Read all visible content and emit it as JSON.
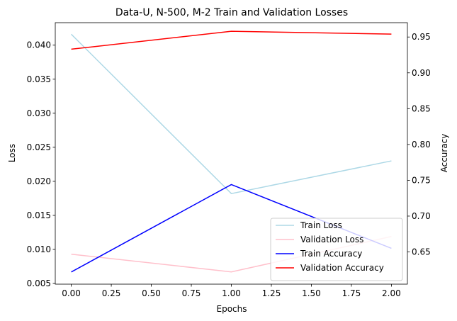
{
  "chart_data": {
    "type": "line",
    "title": "Data-U, N-500, M-2 Train and Validation Losses",
    "xlabel": "Epochs",
    "ylabel": "Loss",
    "y2label": "Accuracy",
    "x": [
      0,
      1,
      2
    ],
    "xlim": [
      -0.1,
      2.1
    ],
    "ylim": [
      0.0049,
      0.0433
    ],
    "y2lim": [
      0.605,
      0.97
    ],
    "xticks": [
      "0.00",
      "0.25",
      "0.50",
      "0.75",
      "1.00",
      "1.25",
      "1.50",
      "1.75",
      "2.00"
    ],
    "yticks": [
      "0.005",
      "0.010",
      "0.015",
      "0.020",
      "0.025",
      "0.030",
      "0.035",
      "0.040"
    ],
    "y2ticks": [
      "0.65",
      "0.70",
      "0.75",
      "0.80",
      "0.85",
      "0.90",
      "0.95"
    ],
    "series": [
      {
        "name": "Train Loss",
        "axis": "left",
        "color": "#add8e6",
        "values": [
          0.0416,
          0.0182,
          0.023
        ]
      },
      {
        "name": "Validation Loss",
        "axis": "left",
        "color": "#ffc0cb",
        "values": [
          0.0093,
          0.0067,
          0.0119
        ]
      },
      {
        "name": "Train Accuracy",
        "axis": "right",
        "color": "#0000ff",
        "values": [
          0.622,
          0.744,
          0.655
        ]
      },
      {
        "name": "Validation Accuracy",
        "axis": "right",
        "color": "#ff0000",
        "values": [
          0.933,
          0.958,
          0.954
        ]
      }
    ],
    "legend_position": "bottom-right",
    "grid": false
  }
}
